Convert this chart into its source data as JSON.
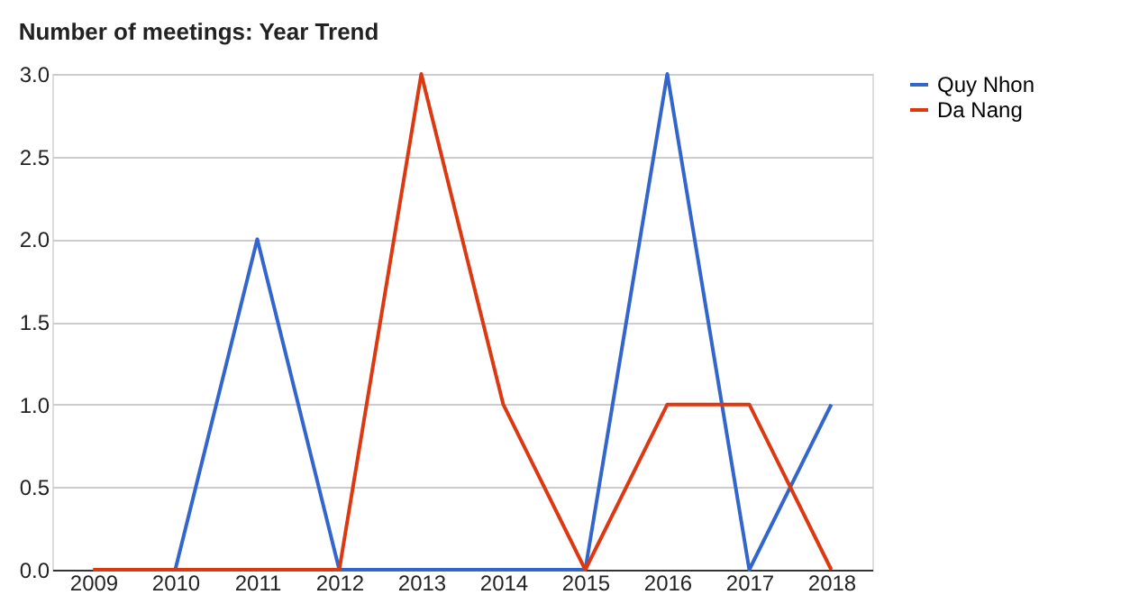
{
  "chart_data": {
    "type": "line",
    "title": "Number of meetings: Year Trend",
    "categories": [
      "2009",
      "2010",
      "2011",
      "2012",
      "2013",
      "2014",
      "2015",
      "2016",
      "2017",
      "2018"
    ],
    "series": [
      {
        "name": "Quy Nhon",
        "color": "#3366cc",
        "values": [
          0,
          0,
          2,
          0,
          0,
          0,
          0,
          3,
          0,
          1
        ]
      },
      {
        "name": "Da Nang",
        "color": "#dc3912",
        "values": [
          0,
          0,
          0,
          0,
          3,
          1,
          0,
          1,
          1,
          0
        ]
      }
    ],
    "ylim": [
      0,
      3
    ],
    "yticks": [
      {
        "value": 0,
        "label": "0.0"
      },
      {
        "value": 0.5,
        "label": "0.5"
      },
      {
        "value": 1,
        "label": "1.0"
      },
      {
        "value": 1.5,
        "label": "1.5"
      },
      {
        "value": 2,
        "label": "2.0"
      },
      {
        "value": 2.5,
        "label": "2.5"
      },
      {
        "value": 3,
        "label": "3.0"
      }
    ],
    "grid": "y",
    "legend": "right",
    "marker": "none",
    "line_style": "solid"
  }
}
